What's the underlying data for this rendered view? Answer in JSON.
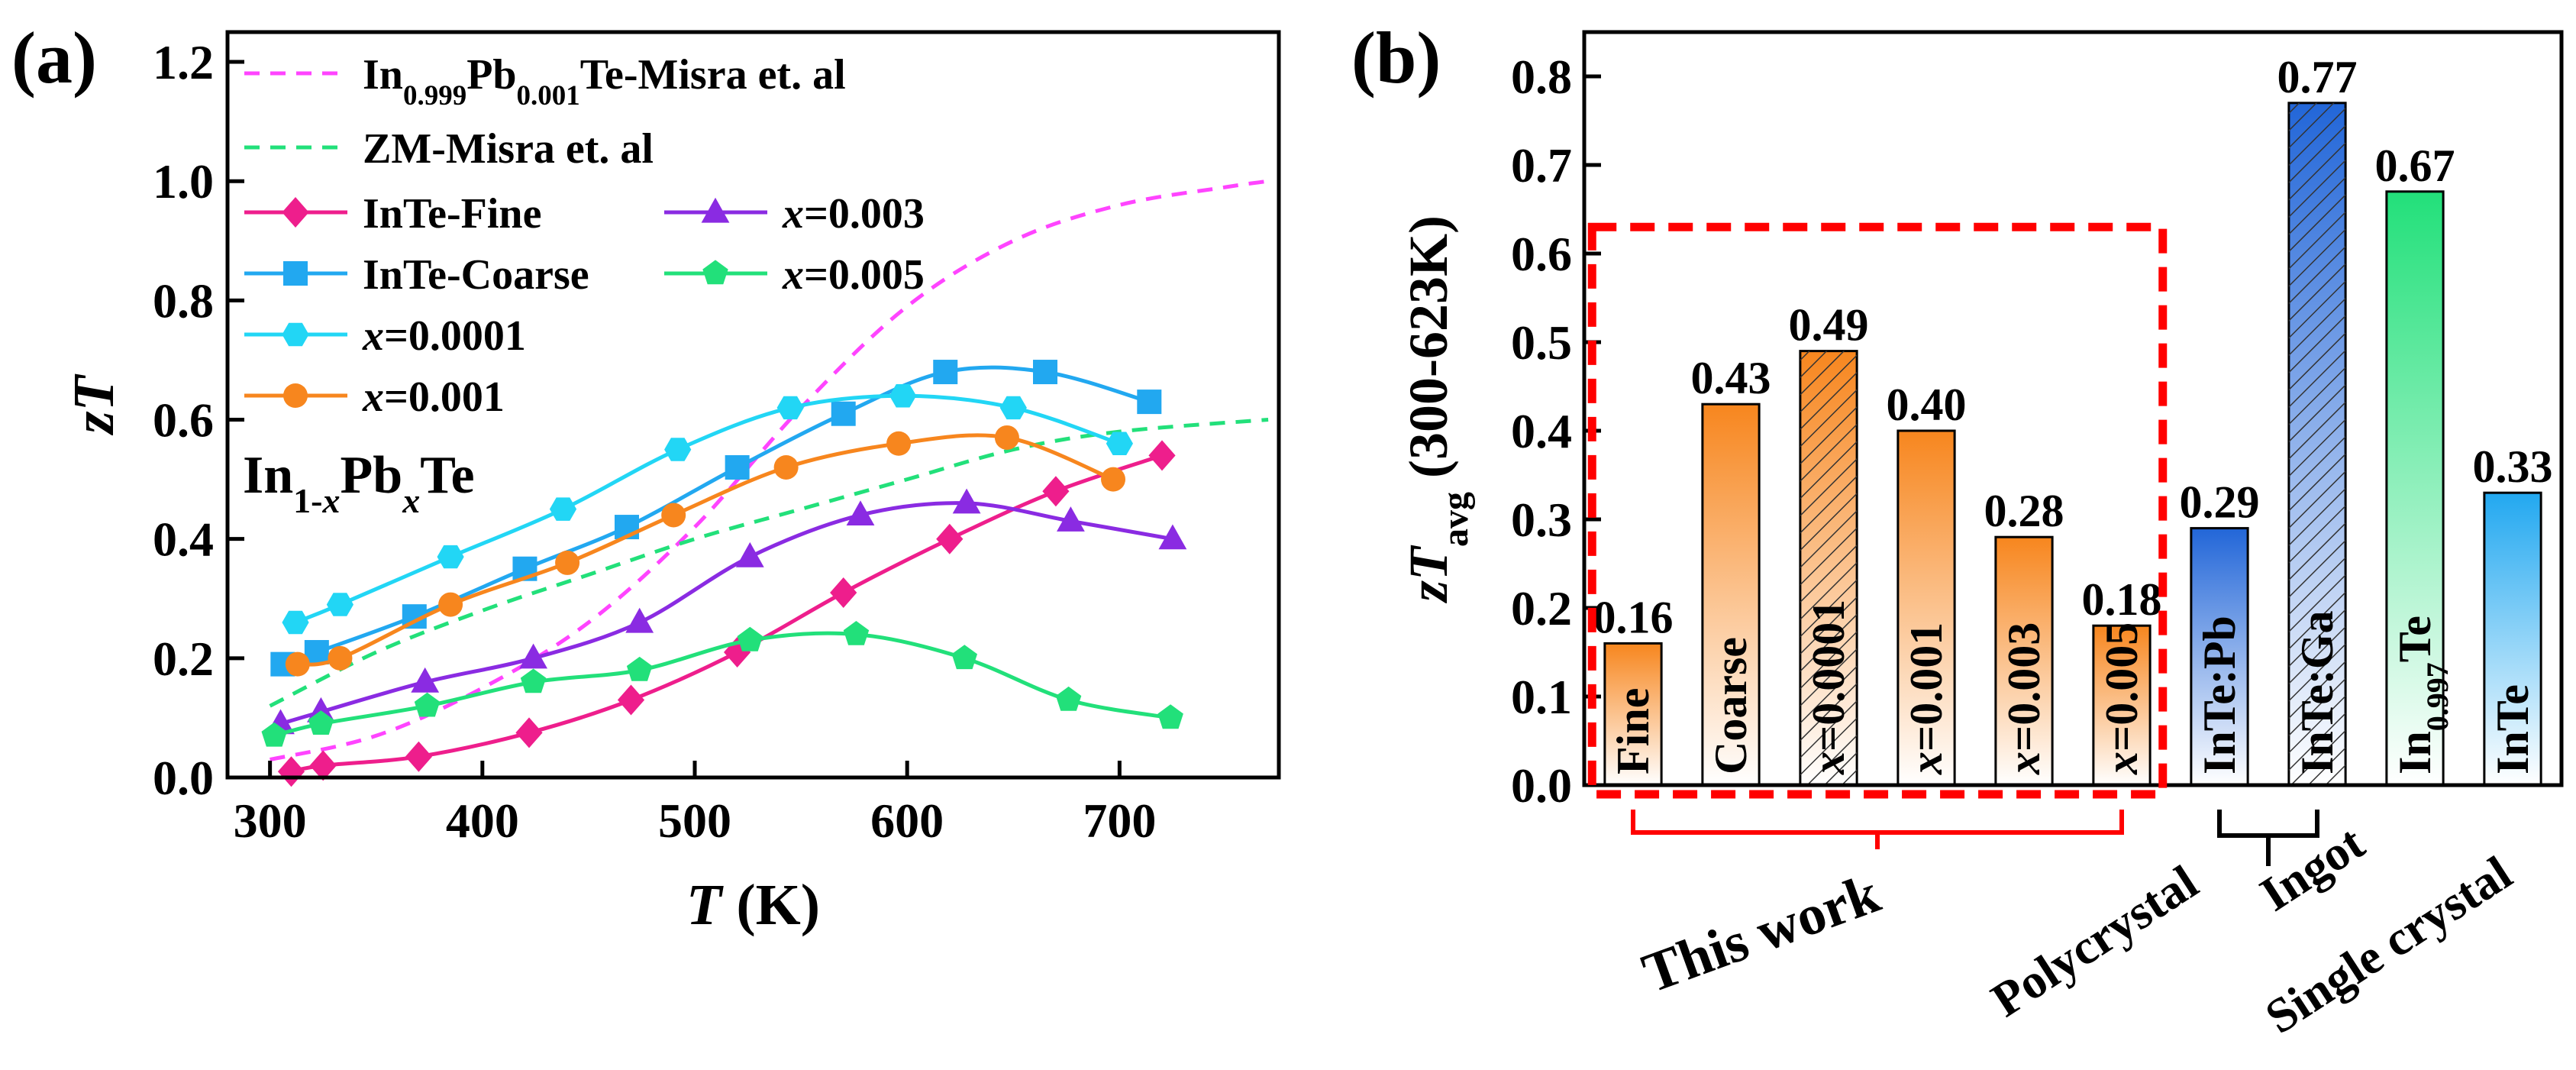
{
  "chart_data": [
    {
      "panel_label": "(a)",
      "type": "line",
      "xlabel": "T (K)",
      "ylabel": "zT",
      "xlim": [
        280,
        775
      ],
      "ylim": [
        0,
        1.25
      ],
      "xticks": [
        300,
        400,
        500,
        600,
        700
      ],
      "yticks": [
        0.0,
        0.2,
        0.4,
        0.6,
        0.8,
        1.0,
        1.2
      ],
      "annotation": "In1-xPbxTe",
      "series": [
        {
          "name": "In0.999Pb0.001Te-Misra et. al",
          "color": "#ff44ff",
          "dashed": true,
          "marker": "none",
          "x": [
            300,
            350,
            400,
            450,
            500,
            550,
            600,
            650,
            700,
            750,
            770
          ],
          "y": [
            0.03,
            0.07,
            0.15,
            0.26,
            0.42,
            0.62,
            0.79,
            0.9,
            0.96,
            0.99,
            1.0
          ]
        },
        {
          "name": "ZM-Misra et. al",
          "color": "#22e07a",
          "dashed": true,
          "marker": "none",
          "x": [
            300,
            350,
            400,
            450,
            500,
            550,
            600,
            650,
            700,
            770
          ],
          "y": [
            0.12,
            0.21,
            0.28,
            0.34,
            0.4,
            0.45,
            0.5,
            0.55,
            0.58,
            0.6
          ]
        },
        {
          "name": "InTe-Fine",
          "color": "#ee1e8c",
          "dashed": false,
          "marker": "diamond",
          "x": [
            310,
            325,
            370,
            422,
            470,
            520,
            570,
            620,
            670,
            720
          ],
          "y": [
            0.01,
            0.02,
            0.035,
            0.075,
            0.13,
            0.21,
            0.31,
            0.4,
            0.48,
            0.54
          ]
        },
        {
          "name": "InTe-Coarse",
          "color": "#22a8f0",
          "dashed": false,
          "marker": "square",
          "x": [
            306,
            322,
            368,
            420,
            468,
            520,
            570,
            618,
            665,
            714
          ],
          "y": [
            0.19,
            0.21,
            0.27,
            0.35,
            0.42,
            0.52,
            0.61,
            0.68,
            0.68,
            0.63
          ]
        },
        {
          "name": "x=0.0001",
          "color": "#22d6f5",
          "dashed": false,
          "marker": "hexagon",
          "x": [
            312,
            333,
            385,
            438,
            492,
            545,
            598,
            650,
            700
          ],
          "y": [
            0.26,
            0.29,
            0.37,
            0.45,
            0.55,
            0.62,
            0.64,
            0.62,
            0.56
          ]
        },
        {
          "name": "x=0.001",
          "color": "#f7861e",
          "dashed": false,
          "marker": "circle",
          "x": [
            313,
            333,
            385,
            440,
            490,
            543,
            596,
            647,
            697
          ],
          "y": [
            0.19,
            0.2,
            0.29,
            0.36,
            0.44,
            0.52,
            0.56,
            0.57,
            0.5
          ]
        },
        {
          "name": "x=0.003",
          "color": "#8a2be2",
          "dashed": false,
          "marker": "triangle",
          "x": [
            305,
            324,
            373,
            424,
            474,
            526,
            578,
            628,
            677,
            725
          ],
          "y": [
            0.09,
            0.11,
            0.16,
            0.2,
            0.26,
            0.37,
            0.44,
            0.46,
            0.43,
            0.4
          ]
        },
        {
          "name": "x=0.005",
          "color": "#22e07a",
          "dashed": false,
          "marker": "pentagon",
          "x": [
            302,
            324,
            374,
            424,
            474,
            526,
            576,
            627,
            676,
            724
          ],
          "y": [
            0.07,
            0.09,
            0.12,
            0.16,
            0.18,
            0.23,
            0.24,
            0.2,
            0.13,
            0.1
          ]
        }
      ],
      "legend": [
        "In0.999Pb0.001Te-Misra et. al",
        "ZM-Misra et. al",
        "InTe-Fine",
        "InTe-Coarse",
        "x=0.0001",
        "x=0.001",
        "x=0.003",
        "x=0.005"
      ]
    },
    {
      "panel_label": "(b)",
      "type": "bar",
      "ylabel": "zTavg (300-623K)",
      "ylim": [
        0,
        0.85
      ],
      "yticks": [
        0.0,
        0.1,
        0.2,
        0.3,
        0.4,
        0.5,
        0.6,
        0.7,
        0.8
      ],
      "bars": [
        {
          "label": "Fine",
          "value": 0.16,
          "value_label": "0.16",
          "color": "#f7861e",
          "hatched": false,
          "label_color": "#000000"
        },
        {
          "label": "Coarse",
          "value": 0.43,
          "value_label": "0.43",
          "color": "#f7861e",
          "hatched": false,
          "label_color": "#000000"
        },
        {
          "label": "x=0.0001",
          "value": 0.49,
          "value_label": "0.49",
          "color": "#f7861e",
          "hatched": true,
          "label_color": "#ff0000"
        },
        {
          "label": "x=0.001",
          "value": 0.4,
          "value_label": "0.40",
          "color": "#f7861e",
          "hatched": false,
          "label_color": "#000000"
        },
        {
          "label": "x=0.003",
          "value": 0.28,
          "value_label": "0.28",
          "color": "#f7861e",
          "hatched": false,
          "label_color": "#000000"
        },
        {
          "label": "x=0.005",
          "value": 0.18,
          "value_label": "0.18",
          "color": "#f7861e",
          "hatched": false,
          "label_color": "#000000"
        },
        {
          "label": "InTe:Pb",
          "value": 0.29,
          "value_label": "0.29",
          "color": "#2266d8",
          "hatched": false,
          "label_color": "#000000"
        },
        {
          "label": "InTe:Ga",
          "value": 0.77,
          "value_label": "0.77",
          "color": "#2266d8",
          "hatched": true,
          "label_color": "#000000"
        },
        {
          "label": "In0.997Te",
          "value": 0.67,
          "value_label": "0.67",
          "color": "#22e07a",
          "hatched": false,
          "label_color": "#000000"
        },
        {
          "label": "InTe",
          "value": 0.33,
          "value_label": "0.33",
          "color": "#22a8f0",
          "hatched": false,
          "label_color": "#000000"
        }
      ],
      "groups": [
        {
          "label": "This work",
          "color": "#ff0000"
        },
        {
          "label": "Polycrystal",
          "color": "#000000"
        },
        {
          "label": "Ingot",
          "color": "#000000"
        },
        {
          "label": "Single crystal",
          "color": "#000000"
        }
      ]
    }
  ]
}
